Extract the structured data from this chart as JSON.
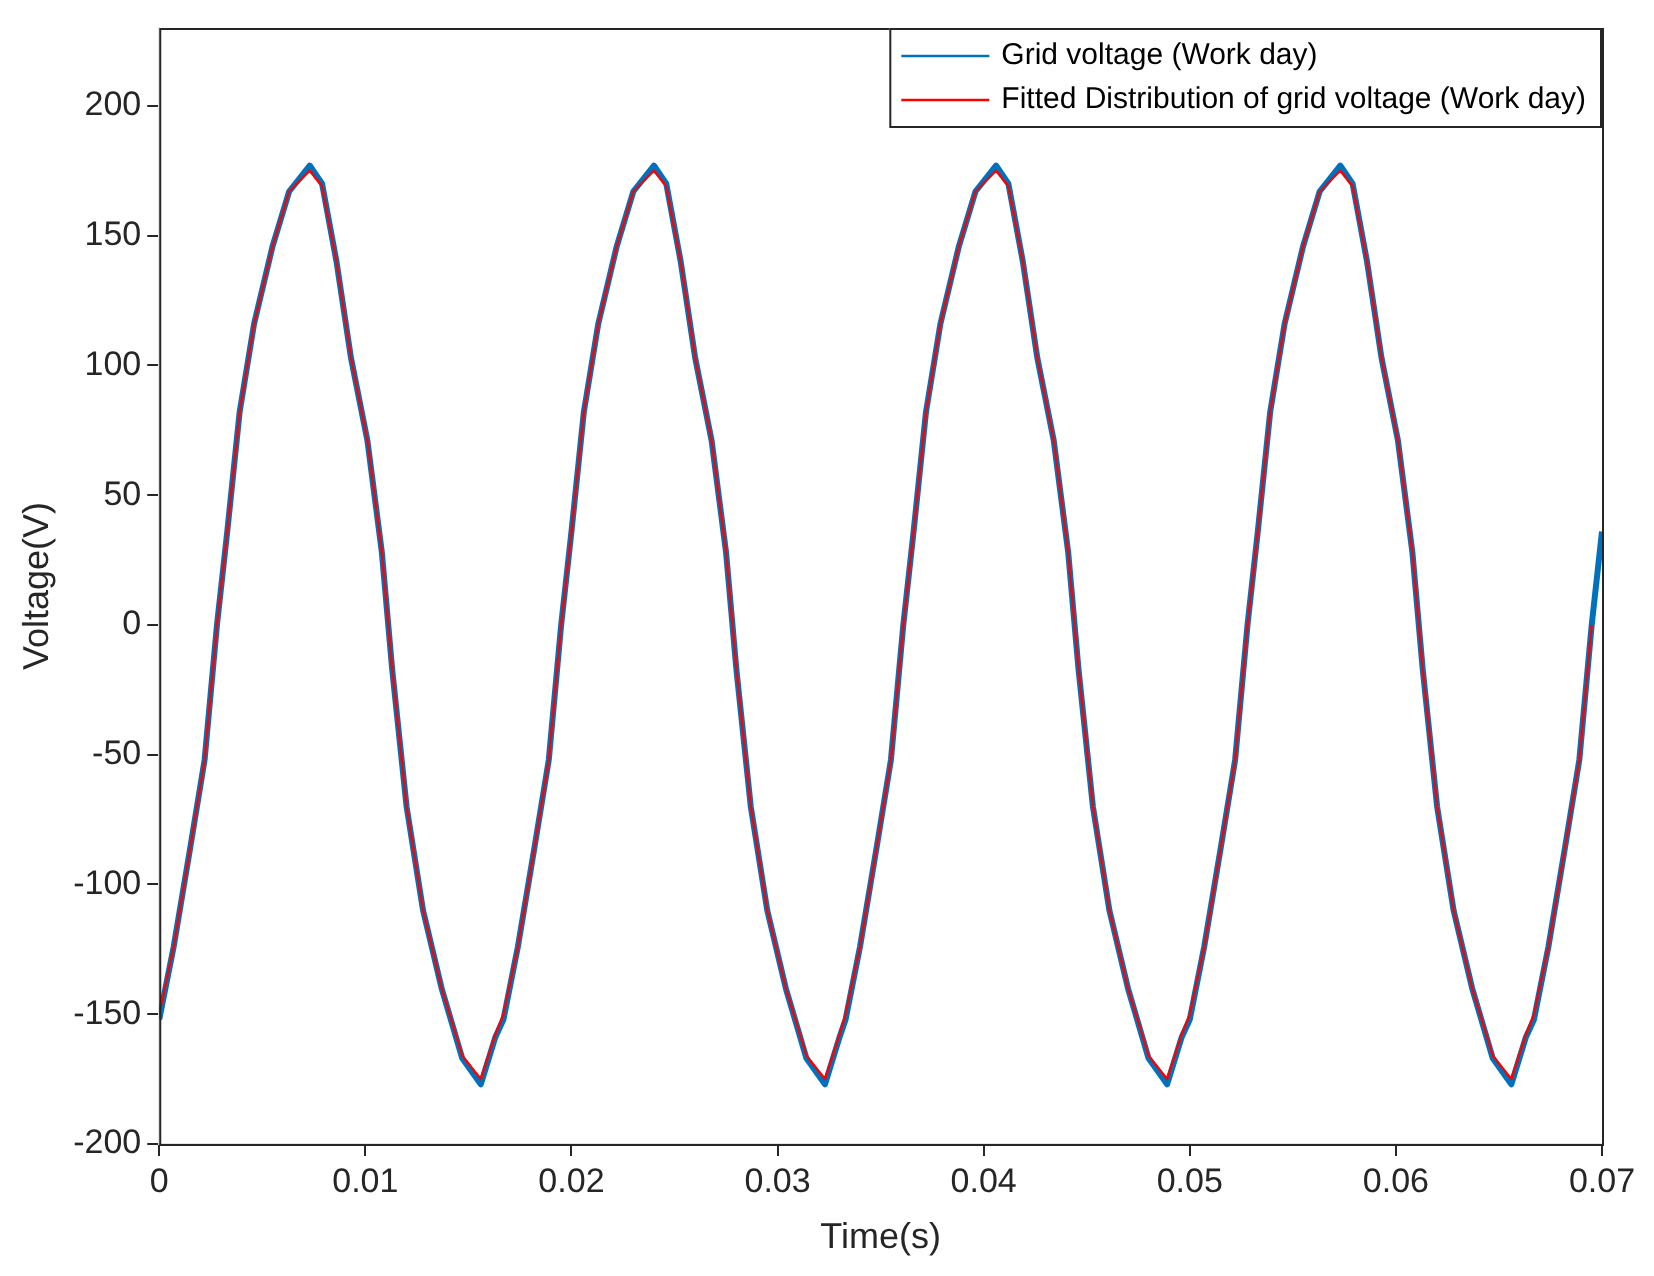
{
  "chart_data": {
    "type": "line",
    "xlabel": "Time(s)",
    "ylabel": "Voltage(V)",
    "xlim": [
      0,
      0.07
    ],
    "xticks": [
      0,
      0.01,
      0.02,
      0.03,
      0.04,
      0.05,
      0.06,
      0.07
    ],
    "ylim": [
      -200,
      230
    ],
    "yticks": [
      -200,
      -150,
      -100,
      -50,
      0,
      50,
      100,
      150,
      200
    ],
    "grid": false,
    "legend": "top right",
    "marker": "none",
    "line_style": "solid",
    "series": [
      {
        "name": "Grid voltage (Work day)",
        "color": "#0072bd",
        "x": [
          0,
          0.0007,
          0.0015,
          0.0022,
          0.0028,
          0.0033,
          0.0039,
          0.0046,
          0.0055,
          0.0063,
          0.0073,
          0.0079,
          0.0086,
          0.0093,
          0.0101,
          0.0108,
          0.0113,
          0.012,
          0.0128,
          0.0137,
          0.0147,
          0.0156,
          0.0163,
          0.0167,
          0.0174,
          0.0182,
          0.0189,
          0.0195,
          0.02,
          0.0206,
          0.0213,
          0.0222,
          0.023,
          0.024,
          0.0246,
          0.0253,
          0.026,
          0.0268,
          0.0275,
          0.028,
          0.0287,
          0.0295,
          0.0304,
          0.0314,
          0.0323,
          0.033,
          0.0333,
          0.034,
          0.0348,
          0.0355,
          0.0361,
          0.0366,
          0.0372,
          0.0379,
          0.0388,
          0.0396,
          0.0406,
          0.0412,
          0.0419,
          0.0426,
          0.0434,
          0.0441,
          0.0446,
          0.0453,
          0.0461,
          0.047,
          0.048,
          0.0489,
          0.0496,
          0.05,
          0.0507,
          0.0515,
          0.0522,
          0.0528,
          0.0533,
          0.0539,
          0.0546,
          0.0555,
          0.0563,
          0.0573,
          0.0579,
          0.0586,
          0.0593,
          0.0601,
          0.0608,
          0.0613,
          0.062,
          0.0628,
          0.0637,
          0.0647,
          0.0656,
          0.0663,
          0.0667,
          0.0674,
          0.0682,
          0.0689,
          0.0695,
          0.07
        ],
        "values": [
          -152,
          -124,
          -86,
          -52,
          0,
          36,
          82,
          116,
          146,
          167,
          177,
          170,
          140,
          103,
          71,
          28,
          -17,
          -70,
          -110,
          -140,
          -167,
          -177,
          -159,
          -152,
          -124,
          -86,
          -52,
          0,
          36,
          82,
          116,
          146,
          167,
          177,
          170,
          140,
          103,
          71,
          28,
          -17,
          -70,
          -110,
          -140,
          -167,
          -177,
          -159,
          -152,
          -124,
          -86,
          -52,
          0,
          36,
          82,
          116,
          146,
          167,
          177,
          170,
          140,
          103,
          71,
          28,
          -17,
          -70,
          -110,
          -140,
          -167,
          -177,
          -159,
          -152,
          -124,
          -86,
          -52,
          0,
          36,
          82,
          116,
          146,
          167,
          177,
          170,
          140,
          103,
          71,
          28,
          -17,
          -70,
          -110,
          -140,
          -167,
          -177,
          -159,
          -152,
          -124,
          -86,
          -52,
          0,
          36
        ]
      },
      {
        "name": "Fitted Distribution of grid voltage (Work day)",
        "color": "#ff0000",
        "x": [
          0,
          0.0007,
          0.0015,
          0.0022,
          0.0028,
          0.0033,
          0.0039,
          0.0046,
          0.0055,
          0.0063,
          0.0073,
          0.0079,
          0.0086,
          0.0093,
          0.0101,
          0.0108,
          0.0113,
          0.012,
          0.0128,
          0.0137,
          0.0147,
          0.0156,
          0.0163,
          0.0167,
          0.0174,
          0.0182,
          0.0189,
          0.0195,
          0.02,
          0.0206,
          0.0213,
          0.0222,
          0.023,
          0.024,
          0.0246,
          0.0253,
          0.026,
          0.0268,
          0.0275,
          0.028,
          0.0287,
          0.0295,
          0.0304,
          0.0314,
          0.0323,
          0.033,
          0.0333,
          0.034,
          0.0348,
          0.0355,
          0.0361,
          0.0366,
          0.0372,
          0.0379,
          0.0388,
          0.0396,
          0.0406,
          0.0412,
          0.0419,
          0.0426,
          0.0434,
          0.0441,
          0.0446,
          0.0453,
          0.0461,
          0.047,
          0.048,
          0.0489,
          0.0496,
          0.05,
          0.0507,
          0.0515,
          0.0522,
          0.0528,
          0.0533,
          0.0539,
          0.0546,
          0.0555,
          0.0563,
          0.0573,
          0.0579,
          0.0586,
          0.0593,
          0.0601,
          0.0608,
          0.0613,
          0.062,
          0.0628,
          0.0637,
          0.0647,
          0.0656,
          0.0663,
          0.0667,
          0.0674,
          0.0682,
          0.0689,
          0.0695
        ],
        "values": [
          -150,
          -124,
          -86,
          -52,
          0,
          36,
          82,
          116,
          146,
          167,
          175,
          169,
          140,
          103,
          71,
          28,
          -17,
          -70,
          -110,
          -140,
          -166,
          -175,
          -158,
          -150,
          -124,
          -86,
          -52,
          0,
          36,
          82,
          116,
          146,
          167,
          175,
          169,
          140,
          103,
          71,
          28,
          -17,
          -70,
          -110,
          -140,
          -166,
          -175,
          -158,
          -150,
          -124,
          -86,
          -52,
          0,
          36,
          82,
          116,
          146,
          167,
          175,
          169,
          140,
          103,
          71,
          28,
          -17,
          -70,
          -110,
          -140,
          -166,
          -175,
          -158,
          -150,
          -124,
          -86,
          -52,
          0,
          36,
          82,
          116,
          146,
          167,
          175,
          169,
          140,
          103,
          71,
          28,
          -17,
          -70,
          -110,
          -140,
          -166,
          -175,
          -158,
          -150,
          -124,
          -86,
          -52,
          0
        ]
      }
    ]
  }
}
